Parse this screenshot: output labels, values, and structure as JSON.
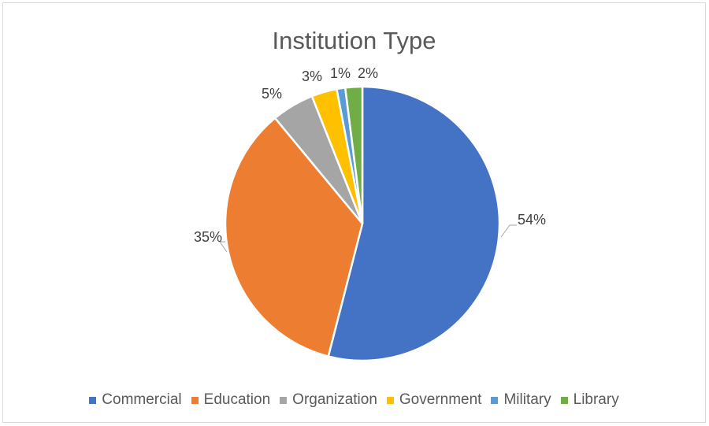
{
  "chart_data": {
    "type": "pie",
    "title": "Institution Type",
    "categories": [
      "Commercial",
      "Education",
      "Organization",
      "Government",
      "Military",
      "Library"
    ],
    "values": [
      54,
      35,
      5,
      3,
      1,
      2
    ],
    "labels": [
      "54%",
      "35%",
      "5%",
      "3%",
      "1%",
      "2%"
    ],
    "colors": [
      "#4472C4",
      "#ED7D31",
      "#A5A5A5",
      "#FFC000",
      "#5B9BD5",
      "#70AD47"
    ],
    "legend_position": "bottom"
  }
}
